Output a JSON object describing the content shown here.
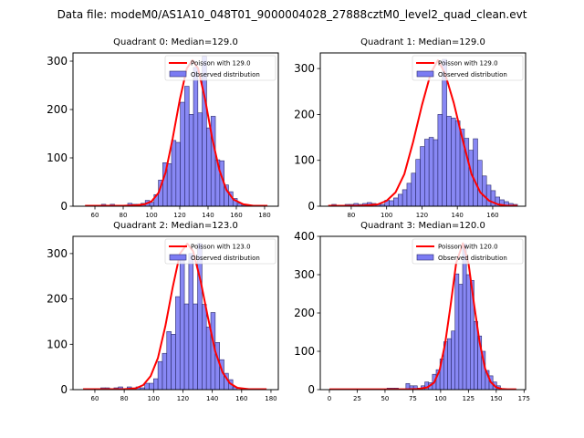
{
  "figure": {
    "suptitle": "Data file: modeM0/AS1A10_048T01_9000004028_27888cztM0_level2_quad_clean.evt"
  },
  "colors": {
    "bar_fill": "#7b7bf3",
    "bar_edge": "#2a2a6a",
    "poisson_line": "#ff0000"
  },
  "chart_data": [
    {
      "type": "bar",
      "title": "Quadrant 0: Median=129.0",
      "xlim": [
        44.5,
        189.7
      ],
      "ylim": [
        0,
        317
      ],
      "xticks": [
        60,
        80,
        100,
        120,
        140,
        160,
        180
      ],
      "yticks": [
        0,
        100,
        200,
        300
      ],
      "legend": {
        "placement": "top-right",
        "entries": [
          "Poisson with 129.0",
          "Observed distribution"
        ]
      },
      "histogram": {
        "bin_width": 3.1,
        "bin_starts": [
          61.5,
          64.6,
          67.7,
          70.8,
          73.9,
          77.0,
          80.1,
          83.2,
          86.3,
          89.4,
          92.5,
          95.6,
          98.7,
          101.8,
          104.9,
          108.0,
          111.1,
          114.2,
          117.3,
          120.4,
          123.5,
          126.6,
          129.7,
          132.8,
          135.9,
          139.0,
          142.1,
          145.2,
          148.3,
          151.4,
          154.5,
          157.6,
          160.7,
          163.8
        ],
        "counts": [
          0,
          4,
          0,
          4,
          0,
          0,
          0,
          6,
          4,
          4,
          6,
          12,
          8,
          24,
          54,
          90,
          88,
          136,
          132,
          215,
          248,
          190,
          287,
          193,
          310,
          162,
          186,
          96,
          94,
          44,
          30,
          16,
          6,
          2
        ]
      },
      "poisson": {
        "label": "Poisson with 129.0",
        "x": [
          53,
          60,
          70,
          80,
          90,
          95,
          100,
          105,
          110,
          115,
          120,
          125,
          129,
          133,
          138,
          143,
          148,
          153,
          158,
          165,
          172,
          182
        ],
        "y": [
          1,
          1,
          1,
          1,
          2,
          4,
          10,
          28,
          70,
          140,
          220,
          285,
          302,
          285,
          220,
          140,
          75,
          34,
          14,
          4,
          1,
          1
        ]
      }
    },
    {
      "type": "bar",
      "title": "Quadrant 1: Median=129.0",
      "xlim": [
        62.5,
        178.6
      ],
      "ylim": [
        0,
        334
      ],
      "xticks": [
        80,
        100,
        120,
        140,
        160
      ],
      "yticks": [
        0,
        100,
        200,
        300
      ],
      "legend": {
        "placement": "top-right",
        "entries": [
          "Poisson with 129.0",
          "Observed distribution"
        ]
      },
      "histogram": {
        "bin_width": 2.5,
        "bin_starts": [
          69,
          71.5,
          74,
          76.5,
          79,
          81.5,
          84,
          86.5,
          89,
          91.5,
          94,
          96.5,
          99,
          101.5,
          104,
          106.5,
          109,
          111.5,
          114,
          116.5,
          119,
          121.5,
          124,
          126.5,
          129,
          131.5,
          134,
          136.5,
          139,
          141.5,
          144,
          146.5,
          149,
          151.5,
          154,
          156.5,
          159,
          161.5,
          164,
          166.5,
          169,
          171.5
        ],
        "counts": [
          4,
          2,
          2,
          4,
          4,
          6,
          4,
          6,
          8,
          6,
          4,
          4,
          13,
          12,
          18,
          26,
          36,
          50,
          72,
          102,
          130,
          146,
          150,
          145,
          200,
          320,
          196,
          192,
          186,
          168,
          148,
          122,
          147,
          100,
          66,
          46,
          34,
          20,
          14,
          10,
          6,
          4
        ]
      },
      "poisson": {
        "label": "Poisson with 129.0",
        "x": [
          67,
          75,
          85,
          95,
          100,
          105,
          110,
          115,
          120,
          125,
          129,
          133,
          138,
          143,
          148,
          153,
          158,
          163,
          168,
          174
        ],
        "y": [
          1,
          1,
          1,
          4,
          12,
          30,
          70,
          140,
          220,
          290,
          318,
          290,
          225,
          145,
          70,
          30,
          12,
          4,
          1,
          1
        ]
      }
    },
    {
      "type": "bar",
      "title": "Quadrant 2: Median=123.0",
      "xlim": [
        45.1,
        185.0
      ],
      "ylim": [
        0,
        338
      ],
      "xticks": [
        60,
        80,
        100,
        120,
        140,
        160,
        180
      ],
      "yticks": [
        0,
        100,
        200,
        300
      ],
      "legend": {
        "placement": "top-right",
        "entries": [
          "Poisson with 123.0",
          "Observed distribution"
        ]
      },
      "histogram": {
        "bin_width": 3.0,
        "bin_starts": [
          64,
          67,
          70,
          73,
          76,
          79,
          82,
          85,
          88,
          91,
          94,
          97,
          100,
          103,
          106,
          109,
          112,
          115,
          118,
          121,
          124,
          127,
          130,
          133,
          136,
          139,
          142,
          145,
          148,
          151,
          154
        ],
        "counts": [
          4,
          4,
          2,
          4,
          6,
          2,
          6,
          2,
          6,
          4,
          14,
          14,
          24,
          62,
          80,
          128,
          122,
          205,
          286,
          189,
          300,
          189,
          322,
          188,
          138,
          170,
          104,
          66,
          36,
          22,
          6
        ]
      },
      "poisson": {
        "label": "Poisson with 123.0",
        "x": [
          52,
          60,
          70,
          80,
          88,
          93,
          98,
          103,
          108,
          113,
          118,
          123,
          127,
          132,
          137,
          142,
          147,
          152,
          157,
          165,
          177
        ],
        "y": [
          1,
          1,
          1,
          1,
          3,
          10,
          30,
          70,
          140,
          225,
          300,
          322,
          305,
          240,
          160,
          85,
          38,
          14,
          4,
          1,
          1
        ]
      }
    },
    {
      "type": "bar",
      "title": "Quadrant 3: Median=120.0",
      "xlim": [
        -8.2,
        176.4
      ],
      "ylim": [
        0,
        400
      ],
      "xticks": [
        0,
        25,
        50,
        75,
        100,
        125,
        150,
        175
      ],
      "yticks": [
        0,
        100,
        200,
        300,
        400
      ],
      "legend": {
        "placement": "top-right",
        "entries": [
          "Poisson with 120.0",
          "Observed distribution"
        ]
      },
      "histogram": {
        "bin_width": 3.4,
        "bin_starts": [
          51.8,
          55.2,
          58.6,
          62.0,
          65.4,
          68.8,
          72.2,
          75.6,
          79.0,
          82.4,
          85.8,
          89.2,
          92.6,
          96.0,
          99.4,
          102.8,
          106.2,
          109.6,
          113.0,
          116.4,
          119.8,
          123.2,
          126.6,
          130.0,
          133.4,
          136.8,
          140.2,
          143.6,
          147.0,
          150.4,
          153.8
        ],
        "counts": [
          4,
          4,
          4,
          0,
          0,
          16,
          10,
          10,
          4,
          10,
          20,
          18,
          40,
          52,
          80,
          125,
          133,
          153,
          302,
          275,
          380,
          300,
          285,
          178,
          140,
          100,
          50,
          36,
          20,
          10,
          0
        ]
      },
      "poisson": {
        "label": "Poisson with 120.0",
        "x": [
          0,
          25,
          50,
          70,
          80,
          88,
          94,
          99,
          104,
          109,
          114,
          120,
          125,
          130,
          135,
          140,
          145,
          150,
          155,
          160,
          168
        ],
        "y": [
          1,
          1,
          1,
          1,
          2,
          6,
          18,
          50,
          120,
          220,
          330,
          382,
          330,
          225,
          125,
          55,
          20,
          6,
          2,
          1,
          1
        ]
      }
    }
  ]
}
